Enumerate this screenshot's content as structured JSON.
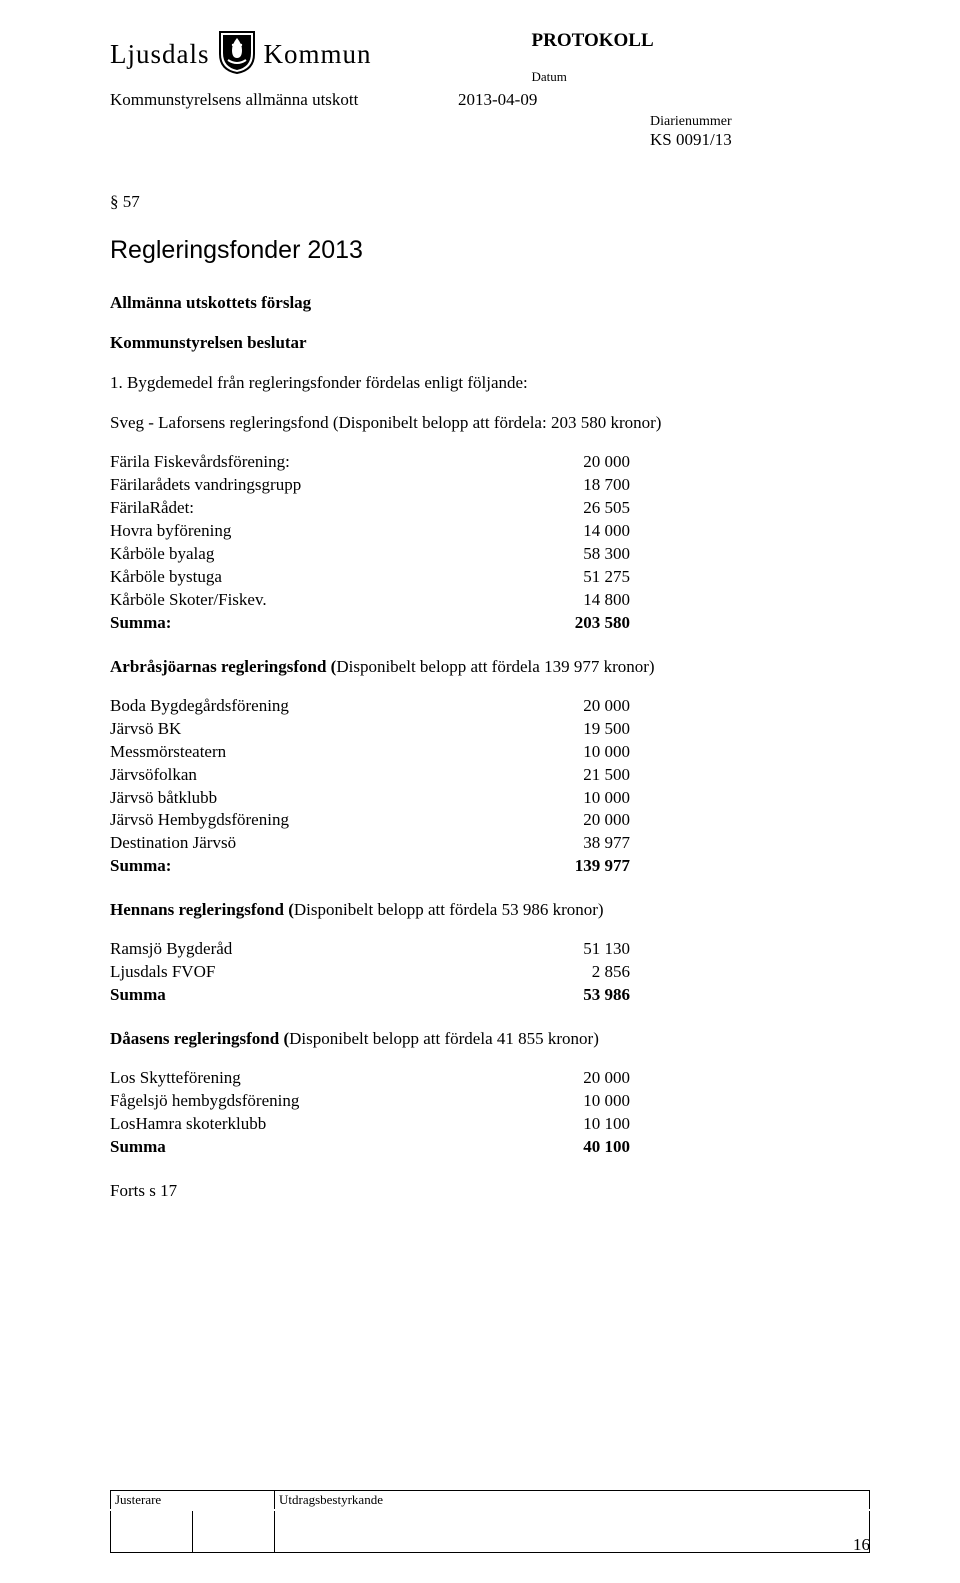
{
  "header": {
    "logo_left": "Ljusdals",
    "logo_right": "Kommun",
    "protokoll": "PROTOKOLL",
    "datum_label": "Datum",
    "committee": "Kommunstyrelsens allmänna utskott",
    "date": "2013-04-09",
    "diarie_label": "Diarienummer",
    "diarie_value": "KS 0091/13"
  },
  "section_num": "§ 57",
  "title": "Regleringsfonder 2013",
  "forslag": "Allmänna utskottets förslag",
  "beslutar": "Kommunstyrelsen beslutar",
  "intro": "1.  Bygdemedel från regleringsfonder fördelas enligt följande:",
  "funds": [
    {
      "heading": "Sveg - Laforsens regleringsfond (Disponibelt belopp att fördela: 203 580 kronor)",
      "bold": false,
      "rows": [
        {
          "label": "Färila Fiskevårdsförening:",
          "value": "20 000",
          "sum": false
        },
        {
          "label": "Färilarådets vandringsgrupp",
          "value": "18 700",
          "sum": false
        },
        {
          "label": "FärilaRådet:",
          "value": "26 505",
          "sum": false
        },
        {
          "label": "Hovra byförening",
          "value": "14 000",
          "sum": false
        },
        {
          "label": "Kårböle byalag",
          "value": "58 300",
          "sum": false
        },
        {
          "label": "Kårböle bystuga",
          "value": "51 275",
          "sum": false
        },
        {
          "label": "Kårböle Skoter/Fiskev.",
          "value": "14 800",
          "sum": false
        },
        {
          "label": "Summa:",
          "value": "203 580",
          "sum": true
        }
      ]
    },
    {
      "heading": "Arbråsjöarnas regleringsfond (Disponibelt belopp att fördela 139 977 kronor)",
      "bold": true,
      "bold_prefix_only": "Arbråsjöarnas regleringsfond (",
      "rows": [
        {
          "label": "Boda Bygdegårdsförening",
          "value": "20 000",
          "sum": false
        },
        {
          "label": "Järvsö BK",
          "value": "19 500",
          "sum": false
        },
        {
          "label": "Messmörsteatern",
          "value": "10 000",
          "sum": false
        },
        {
          "label": "Järvsöfolkan",
          "value": "21 500",
          "sum": false
        },
        {
          "label": "Järvsö båtklubb",
          "value": "10 000",
          "sum": false
        },
        {
          "label": "Järvsö Hembygdsförening",
          "value": "20 000",
          "sum": false
        },
        {
          "label": "Destination Järvsö",
          "value": "38 977",
          "sum": false
        },
        {
          "label": "Summa:",
          "value": "139 977",
          "sum": true
        }
      ]
    },
    {
      "heading": "Hennans regleringsfond (Disponibelt belopp att fördela 53 986 kronor)",
      "bold": true,
      "rows": [
        {
          "label": "Ramsjö Bygderåd",
          "value": "51 130",
          "sum": false
        },
        {
          "label": "Ljusdals FVOF",
          "value": "2 856",
          "sum": false
        },
        {
          "label": "Summa",
          "value": "53 986",
          "sum": true
        }
      ]
    },
    {
      "heading": "Dåasens regleringsfond (Disponibelt belopp att fördela 41 855 kronor)",
      "bold": true,
      "rows": [
        {
          "label": "Los Skytteförening",
          "value": "20 000",
          "sum": false
        },
        {
          "label": "Fågelsjö hembygdsförening",
          "value": "10 000",
          "sum": false
        },
        {
          "label": "LosHamra skoterklubb",
          "value": "10 100",
          "sum": false
        },
        {
          "label": "Summa",
          "value": "40 100",
          "sum": true
        }
      ]
    }
  ],
  "forts": "Forts s 17",
  "footer": {
    "justerare": "Justerare",
    "utdrag": "Utdragsbestyrkande",
    "page": "16"
  }
}
